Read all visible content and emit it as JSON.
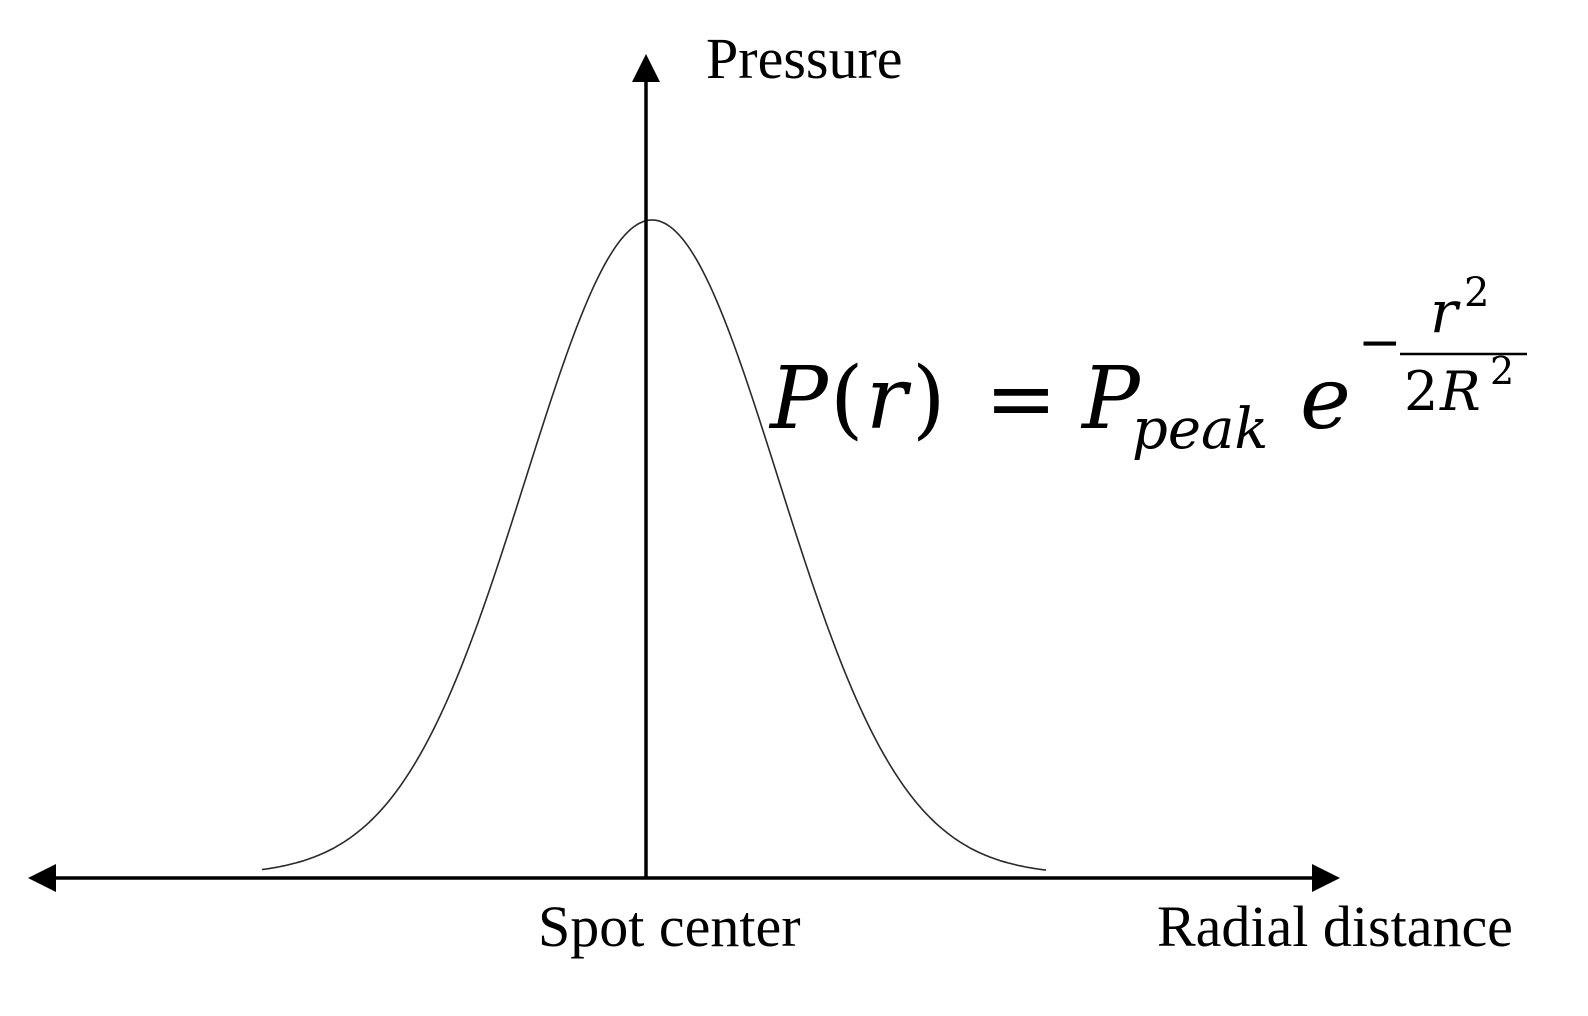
{
  "axes": {
    "y_label": "Pressure",
    "x_label": "Radial distance",
    "origin_label": "Spot center"
  },
  "equation": {
    "lhs_func": "P",
    "lhs_paren_open": "(",
    "lhs_var": "r",
    "lhs_paren_close": ")",
    "equals": "=",
    "rhs_symbol": "P",
    "rhs_subscript": "peak",
    "rhs_base": "e",
    "exp_sign": "−",
    "exp_num_var": "r",
    "exp_num_pow": "2",
    "exp_den_coef": "2",
    "exp_den_var": "R",
    "exp_den_pow": "2"
  },
  "curve": {
    "shape": "gaussian",
    "peak_at": "Spot center"
  },
  "colors": {
    "axis": "#000000",
    "curve": "#2a2a2a",
    "background": "#ffffff"
  }
}
